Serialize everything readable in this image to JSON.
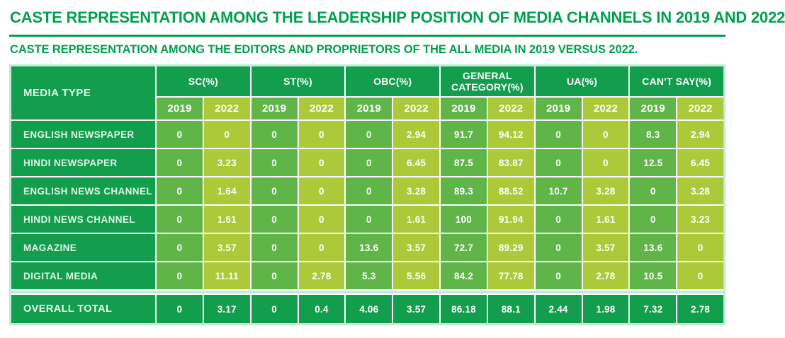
{
  "title": "CASTE REPRESENTATION AMONG THE LEADERSHIP POSITION OF MEDIA CHANNELS IN 2019 AND 2022",
  "subtitle": "CASTE REPRESENTATION AMONG THE EDITORS AND PROPRIETORS OF THE ALL MEDIA IN 2019 VERSUS 2022.",
  "colors": {
    "brand_green": "#00a04e",
    "dark_green_cell": "#129e4d",
    "green_2019_cell": "#5fb548",
    "lime_2022_cell": "#abc939",
    "frame_mint": "#bfecd6"
  },
  "chart_data": {
    "type": "table",
    "title": "CASTE REPRESENTATION AMONG THE LEADERSHIP POSITION OF MEDIA CHANNELS IN 2019 AND 2022",
    "subtitle": "CASTE REPRESENTATION AMONG THE EDITORS AND PROPRIETORS OF THE ALL MEDIA IN 2019 VERSUS 2022.",
    "row_header": "MEDIA TYPE",
    "column_groups": [
      "SC(%)",
      "ST(%)",
      "OBC(%)",
      "GENERAL CATEGORY(%)",
      "UA(%)",
      "CAN'T SAY(%)"
    ],
    "years": [
      "2019",
      "2022"
    ],
    "rows": [
      {
        "label": "ENGLISH NEWSPAPER",
        "values": [
          "0",
          "0",
          "0",
          "0",
          "0",
          "2.94",
          "91.7",
          "94.12",
          "0",
          "0",
          "8.3",
          "2.94"
        ]
      },
      {
        "label": "HINDI NEWSPAPER",
        "values": [
          "0",
          "3.23",
          "0",
          "0",
          "0",
          "6.45",
          "87.5",
          "83.87",
          "0",
          "0",
          "12.5",
          "6.45"
        ]
      },
      {
        "label": "ENGLISH NEWS CHANNEL",
        "values": [
          "0",
          "1.64",
          "0",
          "0",
          "0",
          "3.28",
          "89.3",
          "88.52",
          "10.7",
          "3.28",
          "0",
          "3.28"
        ]
      },
      {
        "label": "HINDI NEWS CHANNEL",
        "values": [
          "0",
          "1.61",
          "0",
          "0",
          "0",
          "1.61",
          "100",
          "91.94",
          "0",
          "1.61",
          "0",
          "3.23"
        ]
      },
      {
        "label": "MAGAZINE",
        "values": [
          "0",
          "3.57",
          "0",
          "0",
          "13.6",
          "3.57",
          "72.7",
          "89.29",
          "0",
          "3.57",
          "13.6",
          "0"
        ]
      },
      {
        "label": "DIGITAL MEDIA",
        "values": [
          "0",
          "11.11",
          "0",
          "2.78",
          "5.3",
          "5.56",
          "84.2",
          "77.78",
          "0",
          "2.78",
          "10.5",
          "0"
        ]
      }
    ],
    "total_row": {
      "label": "OVERALL TOTAL",
      "values": [
        "0",
        "3.17",
        "0",
        "0.4",
        "4.06",
        "3.57",
        "86.18",
        "88.1",
        "2.44",
        "1.98",
        "7.32",
        "2.78"
      ]
    }
  }
}
